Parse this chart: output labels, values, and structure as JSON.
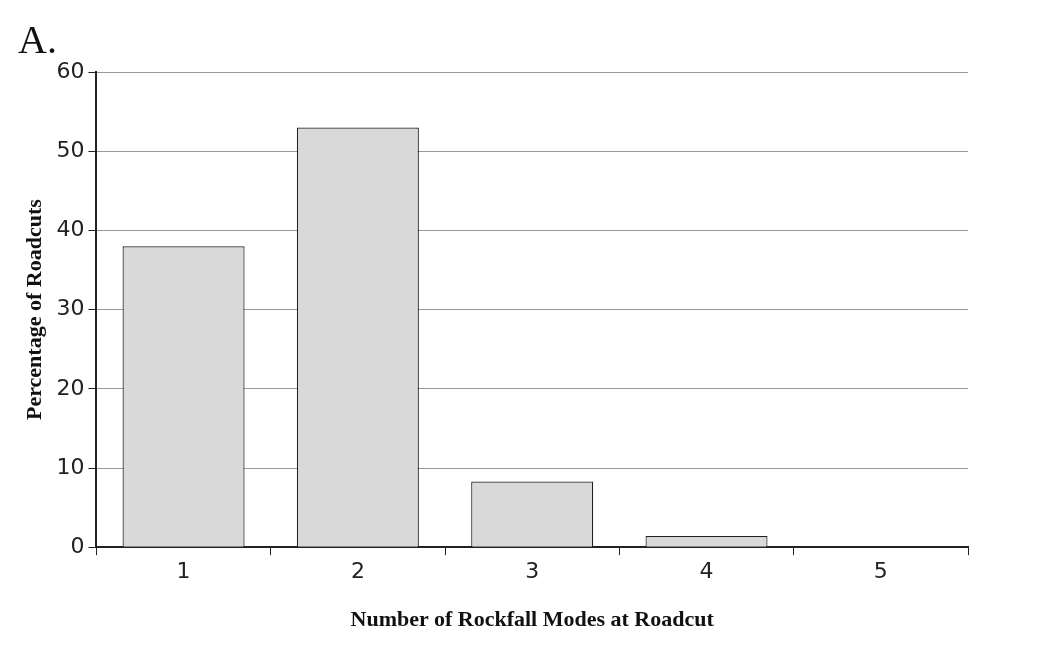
{
  "chart_data": {
    "type": "bar",
    "title": "A.",
    "xlabel": "Number of Rockfall Modes at Roadcut",
    "ylabel": "Percentage of Roadcuts",
    "categories": [
      "1",
      "2",
      "3",
      "4",
      "5"
    ],
    "values": [
      38,
      53,
      8.3,
      1.4,
      0
    ],
    "color": "#d9d9d9",
    "ylim": [
      0,
      60
    ],
    "yticks": [
      0,
      10,
      20,
      30,
      40,
      50,
      60
    ],
    "grid": "y",
    "legend": false
  }
}
